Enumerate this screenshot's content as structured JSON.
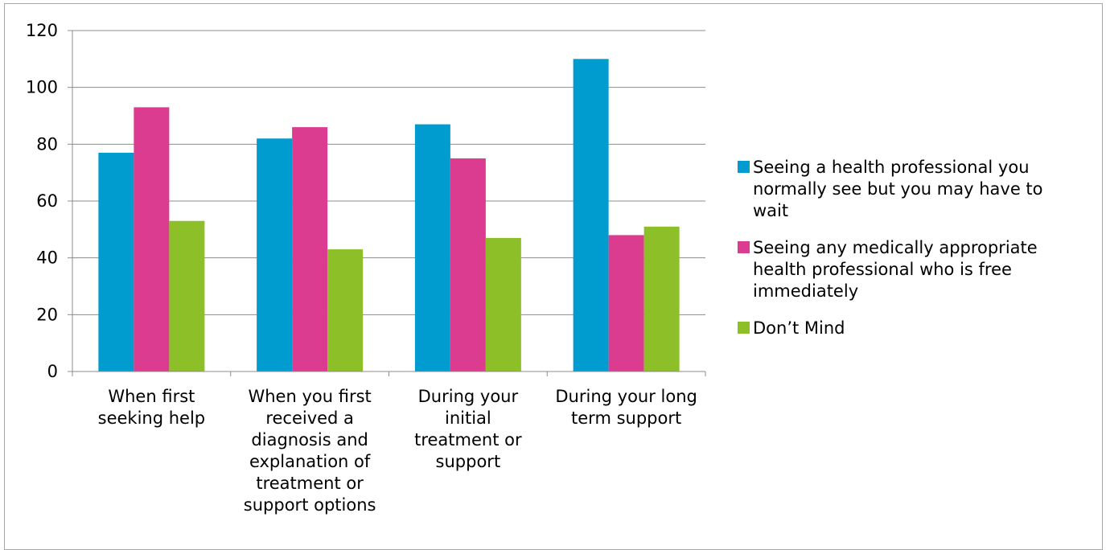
{
  "chart_data": {
    "type": "bar",
    "title": "",
    "xlabel": "",
    "ylabel": "",
    "ylim": [
      0,
      120
    ],
    "yticks": [
      0,
      20,
      40,
      60,
      80,
      100,
      120
    ],
    "grid": true,
    "legend_position": "right",
    "categories": [
      [
        "When first",
        "seeking help"
      ],
      [
        "When you first",
        "received a",
        "diagnosis and",
        "explanation of",
        "treatment or",
        "support options"
      ],
      [
        "During your",
        "initial",
        "treatment or",
        "support"
      ],
      [
        "During your long",
        "term support"
      ]
    ],
    "series": [
      {
        "name": [
          "Seeing a health professional you",
          "normally see but you may have to",
          "wait"
        ],
        "color": "#009ccf",
        "values": [
          77,
          82,
          87,
          110
        ]
      },
      {
        "name": [
          "Seeing any medically appropriate",
          "health professional who is free",
          "immediately"
        ],
        "color": "#dc3c8f",
        "values": [
          93,
          86,
          75,
          48
        ]
      },
      {
        "name": [
          "Don’t Mind"
        ],
        "color": "#8dbf28",
        "values": [
          53,
          43,
          47,
          51
        ]
      }
    ]
  }
}
